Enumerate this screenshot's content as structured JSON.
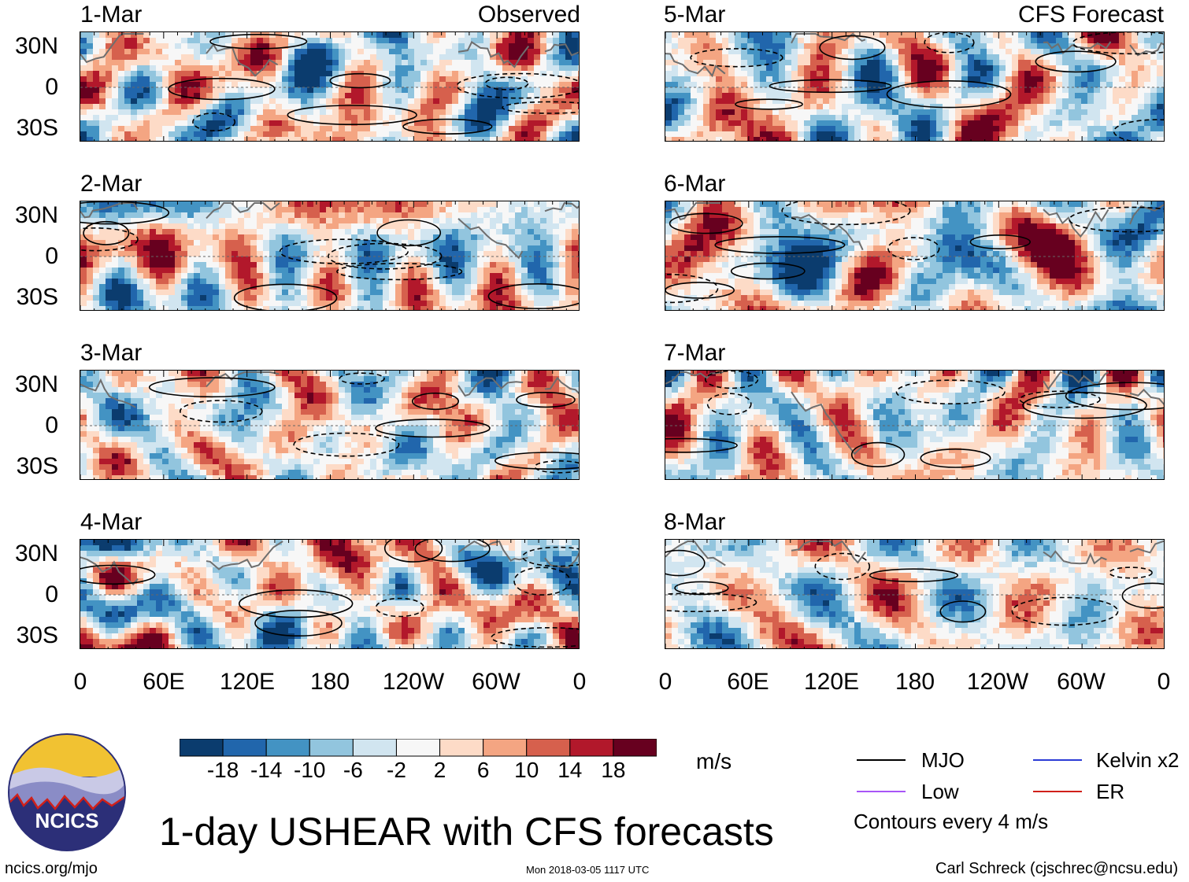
{
  "title": "1-day USHEAR with CFS forecasts",
  "panel_labels": {
    "left_header": "Observed",
    "right_header": "CFS Forecast",
    "left_dates": [
      "1-Mar",
      "2-Mar",
      "3-Mar",
      "4-Mar"
    ],
    "right_dates": [
      "5-Mar",
      "6-Mar",
      "7-Mar",
      "8-Mar"
    ]
  },
  "chart_data": {
    "type": "heatmap",
    "variable": "USHEAR anomaly",
    "units": "m/s",
    "xlabel": "",
    "ylabel": "",
    "x_ticks": [
      "0",
      "60E",
      "120E",
      "180",
      "120W",
      "60W",
      "0"
    ],
    "y_ticks": [
      "30N",
      "0",
      "30S"
    ],
    "xlim": [
      0,
      360
    ],
    "ylim": [
      -40,
      40
    ],
    "colorbar": {
      "ticks": [
        "-18",
        "-14",
        "-10",
        "-6",
        "-2",
        "2",
        "6",
        "10",
        "14",
        "18"
      ],
      "colors": [
        "#0b3c6e",
        "#2166ac",
        "#4393c3",
        "#92c5de",
        "#d1e5f0",
        "#f7f7f7",
        "#fddbc7",
        "#f4a582",
        "#d6604d",
        "#b2182b",
        "#67001f"
      ]
    },
    "contour_interval": "Contours every 4 m/s",
    "legend": [
      {
        "name": "MJO",
        "color": "#000000"
      },
      {
        "name": "Kelvin x2",
        "color": "#2b3bd6"
      },
      {
        "name": "Low",
        "color": "#a855f7"
      },
      {
        "name": "ER",
        "color": "#d0201a"
      }
    ]
  },
  "footer": {
    "logo_text": "NCICS",
    "website": "ncics.org/mjo",
    "timestamp": "Mon 2018-03-05 1117 UTC",
    "author": "Carl Schreck (cjschrec@ncsu.edu)"
  }
}
